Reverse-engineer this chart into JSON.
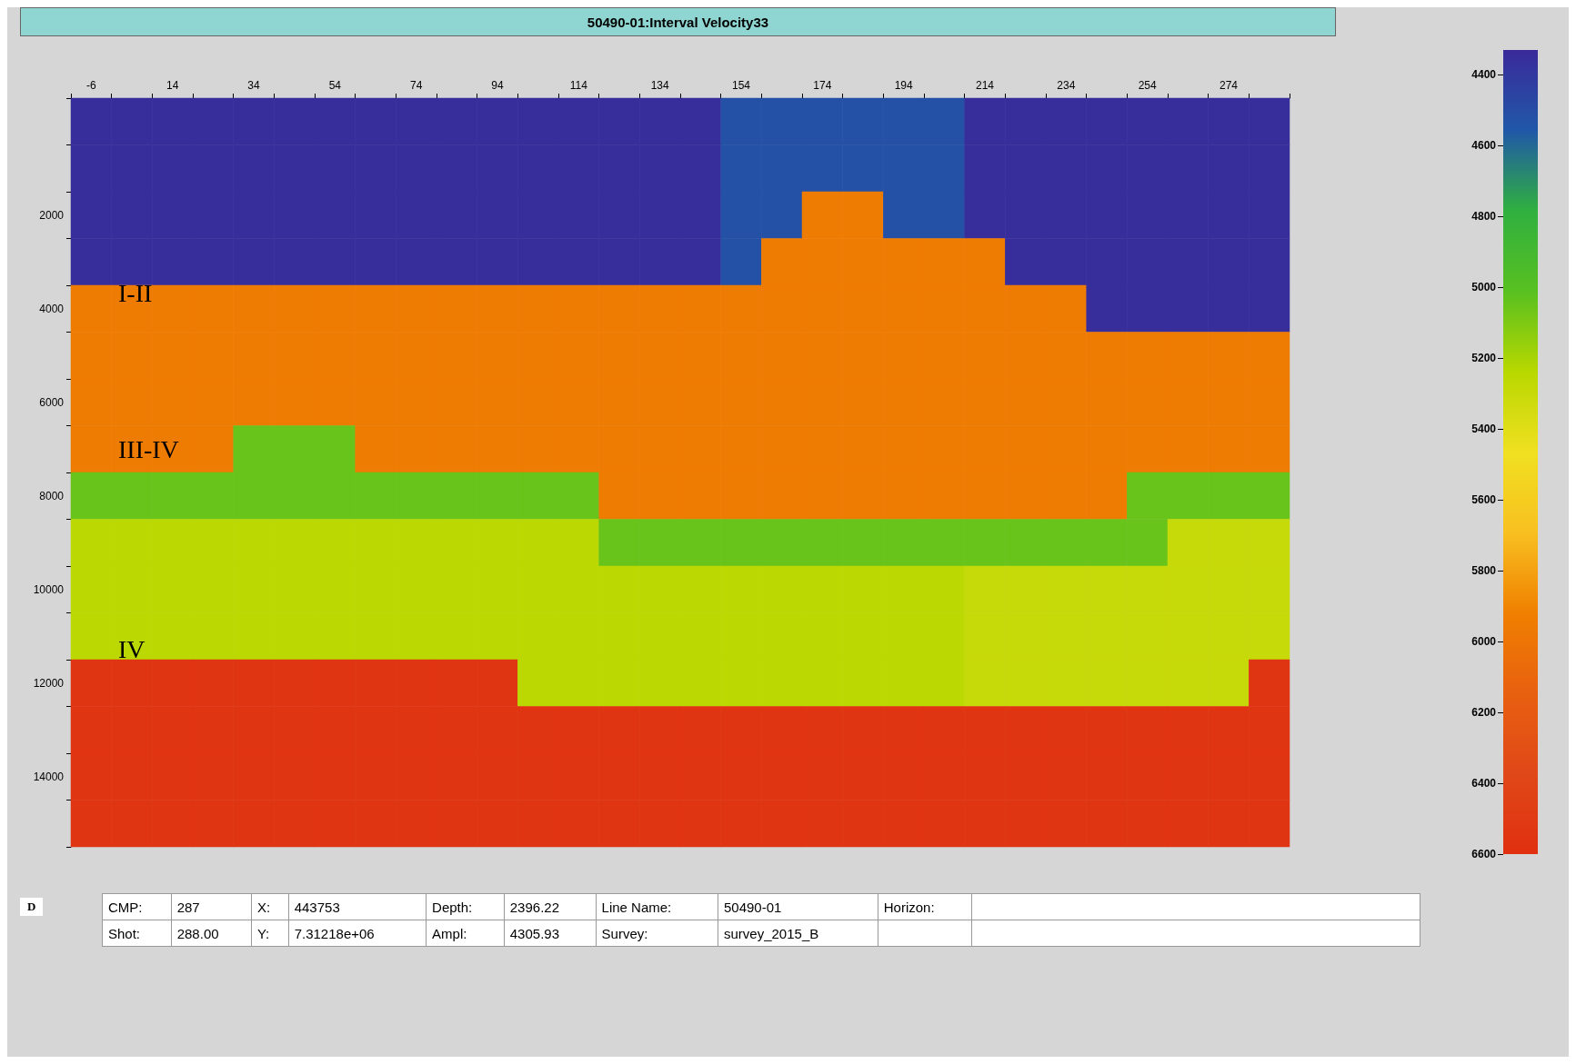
{
  "chart_data": {
    "type": "heatmap",
    "title": "50490-01:Interval Velocity33",
    "categories": [
      "-6",
      null,
      "14",
      null,
      "34",
      null,
      "54",
      null,
      "74",
      null,
      "94",
      null,
      "114",
      null,
      "134",
      null,
      "154",
      null,
      "174",
      null,
      "194",
      null,
      "214",
      null,
      "234",
      null,
      "254",
      null,
      "274",
      null
    ],
    "y_categories": [
      null,
      null,
      "2000",
      null,
      "4000",
      null,
      "6000",
      null,
      "8000",
      null,
      "10000",
      null,
      "12000",
      null,
      "14000",
      null
    ],
    "cells": [
      [
        4350,
        4350,
        4350,
        4350,
        4350,
        4350,
        4350,
        4350,
        4350,
        4350,
        4350,
        4350,
        4350,
        4350,
        4350,
        4350,
        4520,
        4520,
        4520,
        4520,
        4520,
        4520,
        4350,
        4350,
        4350,
        4350,
        4350,
        4350,
        4350,
        4350
      ],
      [
        4350,
        4350,
        4350,
        4350,
        4350,
        4350,
        4350,
        4350,
        4350,
        4350,
        4350,
        4350,
        4350,
        4350,
        4350,
        4350,
        4520,
        4520,
        4520,
        4520,
        4520,
        4520,
        4350,
        4350,
        4350,
        4350,
        4350,
        4350,
        4350,
        4350
      ],
      [
        4350,
        4350,
        4350,
        4350,
        4350,
        4350,
        4350,
        4350,
        4350,
        4350,
        4350,
        4350,
        4350,
        4350,
        4350,
        4350,
        4520,
        4520,
        5950,
        5950,
        4520,
        4520,
        4350,
        4350,
        4350,
        4350,
        4350,
        4350,
        4350,
        4350
      ],
      [
        4350,
        4350,
        4350,
        4350,
        4350,
        4350,
        4350,
        4350,
        4350,
        4350,
        4350,
        4350,
        4350,
        4350,
        4350,
        4350,
        4520,
        5950,
        5950,
        5950,
        5950,
        5950,
        5950,
        4350,
        4350,
        4350,
        4350,
        4350,
        4350,
        4350
      ],
      [
        5950,
        5950,
        5950,
        5950,
        5950,
        5950,
        5950,
        5950,
        5950,
        5950,
        5950,
        5950,
        5950,
        5950,
        5950,
        5950,
        5950,
        5950,
        5950,
        5950,
        5950,
        5950,
        5950,
        5950,
        5950,
        4350,
        4350,
        4350,
        4350,
        4350
      ],
      [
        5950,
        5950,
        5950,
        5950,
        5950,
        5950,
        5950,
        5950,
        5950,
        5950,
        5950,
        5950,
        5950,
        5950,
        5950,
        5950,
        5950,
        5950,
        5950,
        5950,
        5950,
        5950,
        5950,
        5950,
        5950,
        5950,
        5950,
        5950,
        5950,
        5950
      ],
      [
        5950,
        5950,
        5950,
        5950,
        5950,
        5950,
        5950,
        5950,
        5950,
        5950,
        5950,
        5950,
        5950,
        5950,
        5950,
        5950,
        5950,
        5950,
        5950,
        5950,
        5950,
        5950,
        5950,
        5950,
        5950,
        5950,
        5950,
        5950,
        5950,
        5950
      ],
      [
        5950,
        5950,
        5950,
        5950,
        5050,
        5050,
        5050,
        5950,
        5950,
        5950,
        5950,
        5950,
        5950,
        5950,
        5950,
        5950,
        5950,
        5950,
        5950,
        5950,
        5950,
        5950,
        5950,
        5950,
        5950,
        5950,
        5950,
        5950,
        5950,
        5950
      ],
      [
        5050,
        5050,
        5050,
        5050,
        5050,
        5050,
        5050,
        5050,
        5050,
        5050,
        5050,
        5050,
        5050,
        5950,
        5950,
        5950,
        5950,
        5950,
        5950,
        5950,
        5950,
        5950,
        5950,
        5950,
        5950,
        5950,
        5050,
        5050,
        5050,
        5050
      ],
      [
        5250,
        5250,
        5250,
        5250,
        5250,
        5250,
        5250,
        5250,
        5250,
        5250,
        5250,
        5250,
        5250,
        5050,
        5050,
        5050,
        5050,
        5050,
        5050,
        5050,
        5050,
        5050,
        5050,
        5050,
        5050,
        5050,
        5050,
        5300,
        5300,
        5300
      ],
      [
        5250,
        5250,
        5250,
        5250,
        5250,
        5250,
        5250,
        5250,
        5250,
        5250,
        5250,
        5250,
        5250,
        5250,
        5250,
        5250,
        5250,
        5250,
        5250,
        5250,
        5250,
        5250,
        5300,
        5300,
        5300,
        5300,
        5300,
        5300,
        5300,
        5300
      ],
      [
        5250,
        5250,
        5250,
        5250,
        5250,
        5250,
        5250,
        5250,
        5250,
        5250,
        5250,
        5250,
        5250,
        5250,
        5250,
        5250,
        5250,
        5250,
        5250,
        5250,
        5250,
        5250,
        5300,
        5300,
        5300,
        5300,
        5300,
        5300,
        5300,
        5300
      ],
      [
        6550,
        6550,
        6550,
        6550,
        6550,
        6550,
        6550,
        6550,
        6550,
        6550,
        6550,
        5250,
        5250,
        5250,
        5250,
        5250,
        5250,
        5250,
        5250,
        5250,
        5250,
        5250,
        5300,
        5300,
        5300,
        5300,
        5300,
        5300,
        5300,
        6550
      ],
      [
        6550,
        6550,
        6550,
        6550,
        6550,
        6550,
        6550,
        6550,
        6550,
        6550,
        6550,
        6550,
        6550,
        6550,
        6550,
        6550,
        6550,
        6550,
        6550,
        6550,
        6550,
        6550,
        6550,
        6550,
        6550,
        6550,
        6550,
        6550,
        6550,
        6550
      ],
      [
        6550,
        6550,
        6550,
        6550,
        6550,
        6550,
        6550,
        6550,
        6550,
        6550,
        6550,
        6550,
        6550,
        6550,
        6550,
        6550,
        6550,
        6550,
        6550,
        6550,
        6550,
        6550,
        6550,
        6550,
        6550,
        6550,
        6550,
        6550,
        6550,
        6550
      ],
      [
        6550,
        6550,
        6550,
        6550,
        6550,
        6550,
        6550,
        6550,
        6550,
        6550,
        6550,
        6550,
        6550,
        6550,
        6550,
        6550,
        6550,
        6550,
        6550,
        6550,
        6550,
        6550,
        6550,
        6550,
        6550,
        6550,
        6550,
        6550,
        6550,
        6550
      ]
    ],
    "clim": [
      4330,
      6600
    ],
    "cticks": [
      4400,
      4600,
      4800,
      5000,
      5200,
      5400,
      5600,
      5800,
      6000,
      6200,
      6400,
      6600
    ],
    "annotations": [
      "I-II",
      "III-IV",
      "IV",
      "D",
      "CMP:",
      "287",
      "X:",
      "443753",
      "Depth:",
      "2396.22",
      "Line Name:",
      "50490-01",
      "Horizon:",
      "Shot:",
      "288.00",
      "Y:",
      "7.31218e+06",
      "Ampl:",
      "4305.93",
      "Survey:",
      "survey_2015_B"
    ]
  }
}
